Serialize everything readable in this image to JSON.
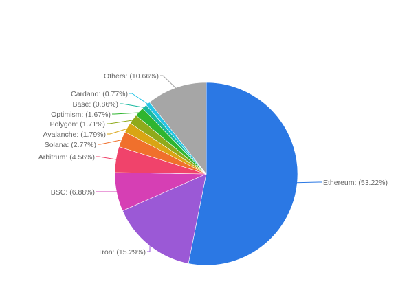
{
  "chart_data": {
    "type": "pie",
    "title": "",
    "legend": "none",
    "start_angle_deg": 0,
    "direction": "clockwise",
    "slices": [
      {
        "label": "Ethereum",
        "display": "Ethereum: (53.22%)",
        "value": 53.22,
        "color": "#2b78e4"
      },
      {
        "label": "Tron",
        "display": "Tron: (15.29%)",
        "value": 15.29,
        "color": "#9b59d6"
      },
      {
        "label": "BSC",
        "display": "BSC: (6.88%)",
        "value": 6.88,
        "color": "#d63fb4"
      },
      {
        "label": "Arbitrum",
        "display": "Arbitrum: (4.56%)",
        "value": 4.56,
        "color": "#f0436b"
      },
      {
        "label": "Solana",
        "display": "Solana: (2.77%)",
        "value": 2.77,
        "color": "#f0702c"
      },
      {
        "label": "Avalanche",
        "display": "Avalanche: (1.79%)",
        "value": 1.79,
        "color": "#d9a514"
      },
      {
        "label": "Polygon",
        "display": "Polygon: (1.71%)",
        "value": 1.71,
        "color": "#8faa1b"
      },
      {
        "label": "Optimism",
        "display": "Optimism: (1.67%)",
        "value": 1.67,
        "color": "#2fb52f"
      },
      {
        "label": "Base",
        "display": "Base: (0.86%)",
        "value": 0.86,
        "color": "#18b8a0"
      },
      {
        "label": "Cardano",
        "display": "Cardano: (0.77%)",
        "value": 0.77,
        "color": "#25c4e6"
      },
      {
        "label": "Others",
        "display": "Others: (10.66%)",
        "value": 10.66,
        "color": "#a6a6a6"
      }
    ]
  }
}
